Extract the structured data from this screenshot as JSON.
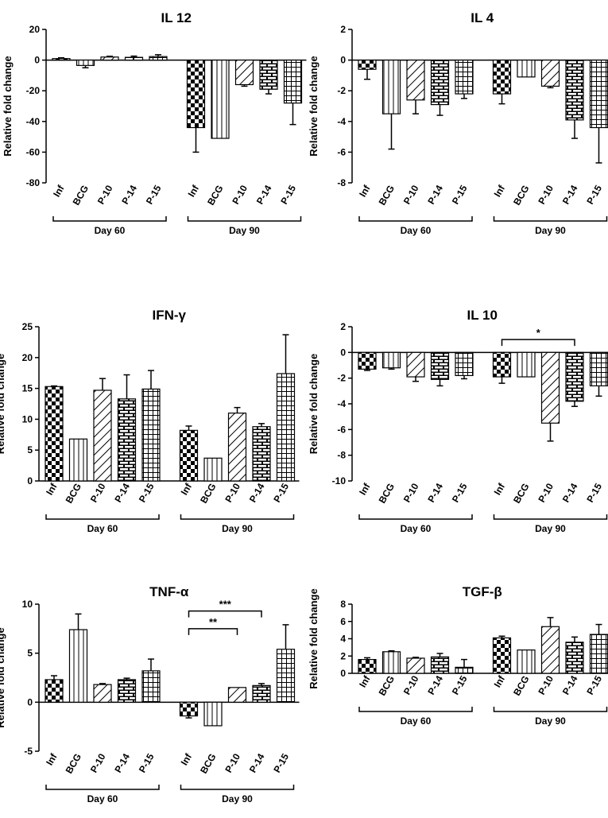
{
  "figure": {
    "panels_count": 6
  },
  "chart_data": [
    {
      "type": "bar",
      "title": "IL 12",
      "ylabel": "Relative fold change",
      "ylim": [
        -80,
        20
      ],
      "yticks": [
        20,
        0,
        -20,
        -40,
        -60,
        -80
      ],
      "groups": [
        {
          "label": "Day 60",
          "categories": [
            "Inf",
            "BCG",
            "P-10",
            "P-14",
            "P-15"
          ],
          "values": [
            1,
            -3.5,
            2,
            1.8,
            2.3
          ],
          "errors": [
            0.5,
            1.5,
            0.5,
            0.8,
            1.2
          ]
        },
        {
          "label": "Day 90",
          "categories": [
            "Inf",
            "BCG",
            "P-10",
            "P-14",
            "P-15"
          ],
          "values": [
            -44,
            -51,
            -16,
            -19,
            -28
          ],
          "errors": [
            16,
            0,
            1,
            3,
            14
          ]
        }
      ],
      "annotations": []
    },
    {
      "type": "bar",
      "title": "IL 4",
      "ylabel": "Relative fold change",
      "ylim": [
        -8,
        2
      ],
      "yticks": [
        2,
        0,
        -2,
        -4,
        -6,
        -8
      ],
      "groups": [
        {
          "label": "Day 60",
          "categories": [
            "Inf",
            "BCG",
            "P-10",
            "P-14",
            "P-15"
          ],
          "values": [
            -0.6,
            -3.5,
            -2.6,
            -2.9,
            -2.2
          ],
          "errors": [
            0.65,
            2.3,
            0.9,
            0.7,
            0.3
          ]
        },
        {
          "label": "Day 90",
          "categories": [
            "Inf",
            "BCG",
            "P-10",
            "P-14",
            "P-15"
          ],
          "values": [
            -2.2,
            -1.1,
            -1.7,
            -3.9,
            -4.4
          ],
          "errors": [
            0.65,
            0,
            0.1,
            1.2,
            2.3
          ]
        }
      ],
      "annotations": []
    },
    {
      "type": "bar",
      "title": "IFN-γ",
      "ylabel": "Relative fold change",
      "ylim": [
        0,
        25
      ],
      "yticks": [
        25,
        20,
        15,
        10,
        5,
        0
      ],
      "groups": [
        {
          "label": "Day 60",
          "categories": [
            "Inf",
            "BCG",
            "P-10",
            "P-14",
            "P-15"
          ],
          "values": [
            15.3,
            6.8,
            14.7,
            13.3,
            14.9
          ],
          "errors": [
            0.1,
            0,
            1.9,
            3.9,
            3
          ]
        },
        {
          "label": "Day 90",
          "categories": [
            "Inf",
            "BCG",
            "P-10",
            "P-14",
            "P-15"
          ],
          "values": [
            8.2,
            3.7,
            11,
            8.8,
            17.4
          ],
          "errors": [
            0.7,
            0,
            0.9,
            0.5,
            6.3
          ]
        }
      ],
      "annotations": []
    },
    {
      "type": "bar",
      "title": "IL 10",
      "ylabel": "Relative fold change",
      "ylim": [
        -10,
        2
      ],
      "yticks": [
        2,
        0,
        -2,
        -4,
        -6,
        -8,
        -10
      ],
      "groups": [
        {
          "label": "Day 60",
          "categories": [
            "Inf",
            "BCG",
            "P-10",
            "P-14",
            "P-15"
          ],
          "values": [
            -1.3,
            -1.2,
            -1.9,
            -2.1,
            -1.8
          ],
          "errors": [
            0.1,
            0.1,
            0.35,
            0.5,
            0.25
          ]
        },
        {
          "label": "Day 90",
          "categories": [
            "Inf",
            "BCG",
            "P-10",
            "P-14",
            "P-15"
          ],
          "values": [
            -1.9,
            -1.9,
            -5.5,
            -3.8,
            -2.6
          ],
          "errors": [
            0.5,
            0,
            1.4,
            0.4,
            0.8
          ]
        }
      ],
      "annotations": [
        {
          "text": "*",
          "from": [
            1,
            0
          ],
          "to": [
            1,
            3
          ],
          "value": 1.0
        }
      ]
    },
    {
      "type": "bar",
      "title": "TNF-α",
      "ylabel": "Relative fold change",
      "ylim": [
        -5,
        10
      ],
      "yticks": [
        10,
        5,
        0,
        -5
      ],
      "groups": [
        {
          "label": "Day 60",
          "categories": [
            "Inf",
            "BCG",
            "P-10",
            "P-14",
            "P-15"
          ],
          "values": [
            2.3,
            7.4,
            1.8,
            2.3,
            3.2
          ],
          "errors": [
            0.4,
            1.6,
            0.1,
            0.15,
            1.2
          ]
        },
        {
          "label": "Day 90",
          "categories": [
            "Inf",
            "BCG",
            "P-10",
            "P-14",
            "P-15"
          ],
          "values": [
            -1.4,
            -2.4,
            1.5,
            1.7,
            5.4
          ],
          "errors": [
            0.2,
            0,
            0,
            0.2,
            2.5
          ]
        }
      ],
      "annotations": [
        {
          "text": "***",
          "from": [
            1,
            0
          ],
          "to": [
            1,
            3
          ],
          "value": 9.3
        },
        {
          "text": "**",
          "from": [
            1,
            0
          ],
          "to": [
            1,
            2
          ],
          "value": 7.5
        }
      ]
    },
    {
      "type": "bar",
      "title": "TGF-β",
      "ylabel": "Relative fold change",
      "ylim": [
        0,
        8
      ],
      "yticks": [
        8,
        6,
        4,
        2,
        0
      ],
      "groups": [
        {
          "label": "Day 60",
          "categories": [
            "Inf",
            "BCG",
            "P-10",
            "P-14",
            "P-15"
          ],
          "values": [
            1.6,
            2.5,
            1.75,
            1.9,
            0.7
          ],
          "errors": [
            0.2,
            0.1,
            0.1,
            0.4,
            0.9
          ]
        },
        {
          "label": "Day 90",
          "categories": [
            "Inf",
            "BCG",
            "P-10",
            "P-14",
            "P-15"
          ],
          "values": [
            4.1,
            2.7,
            5.4,
            3.6,
            4.5
          ],
          "errors": [
            0.2,
            0,
            1.05,
            0.6,
            1.15
          ]
        }
      ],
      "annotations": []
    }
  ]
}
